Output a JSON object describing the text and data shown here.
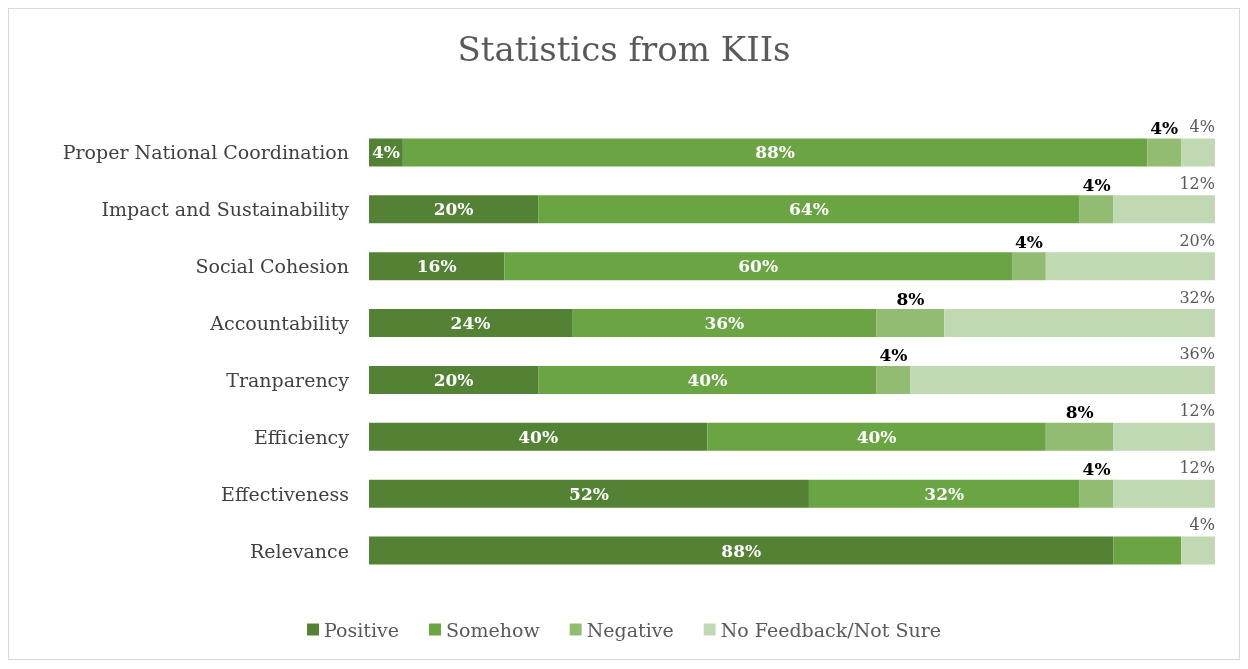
{
  "chart_data": {
    "type": "bar",
    "orientation": "horizontal",
    "stacked": true,
    "title": "Statistics from KIIs",
    "categories": [
      "Proper National Coordination",
      "Impact and Sustainability",
      "Social Cohesion",
      "Accountability",
      "Tranparency",
      "Efficiency",
      "Effectiveness",
      "Relevance"
    ],
    "xlim": [
      0,
      100
    ],
    "tick_labels": "y",
    "grid": false,
    "legend": "bottom",
    "series": [
      {
        "name": "Positive",
        "color": "#548235",
        "values": [
          4,
          20,
          16,
          24,
          20,
          40,
          52,
          88
        ],
        "value_labels": [
          "4%",
          "20%",
          "16%",
          "24%",
          "20%",
          "40%",
          "52%",
          "88%"
        ]
      },
      {
        "name": "Somehow",
        "color": "#6aa443",
        "values": [
          88,
          64,
          60,
          36,
          40,
          40,
          32,
          8
        ],
        "value_labels": [
          "88%",
          "64%",
          "60%",
          "36%",
          "40%",
          "40%",
          "32%",
          null
        ]
      },
      {
        "name": "Negative",
        "color": "#93bc73",
        "values": [
          4,
          4,
          4,
          8,
          4,
          8,
          4,
          0
        ],
        "value_labels": [
          "4%",
          "4%",
          "4%",
          "8%",
          "4%",
          "8%",
          "4%",
          null
        ]
      },
      {
        "name": "No Feedback/Not Sure",
        "color": "#c0d9b2",
        "values": [
          4,
          12,
          20,
          32,
          36,
          12,
          12,
          4
        ],
        "value_labels": [
          "4%",
          "12%",
          "20%",
          "32%",
          "36%",
          "12%",
          "12%",
          "4%"
        ]
      }
    ]
  }
}
